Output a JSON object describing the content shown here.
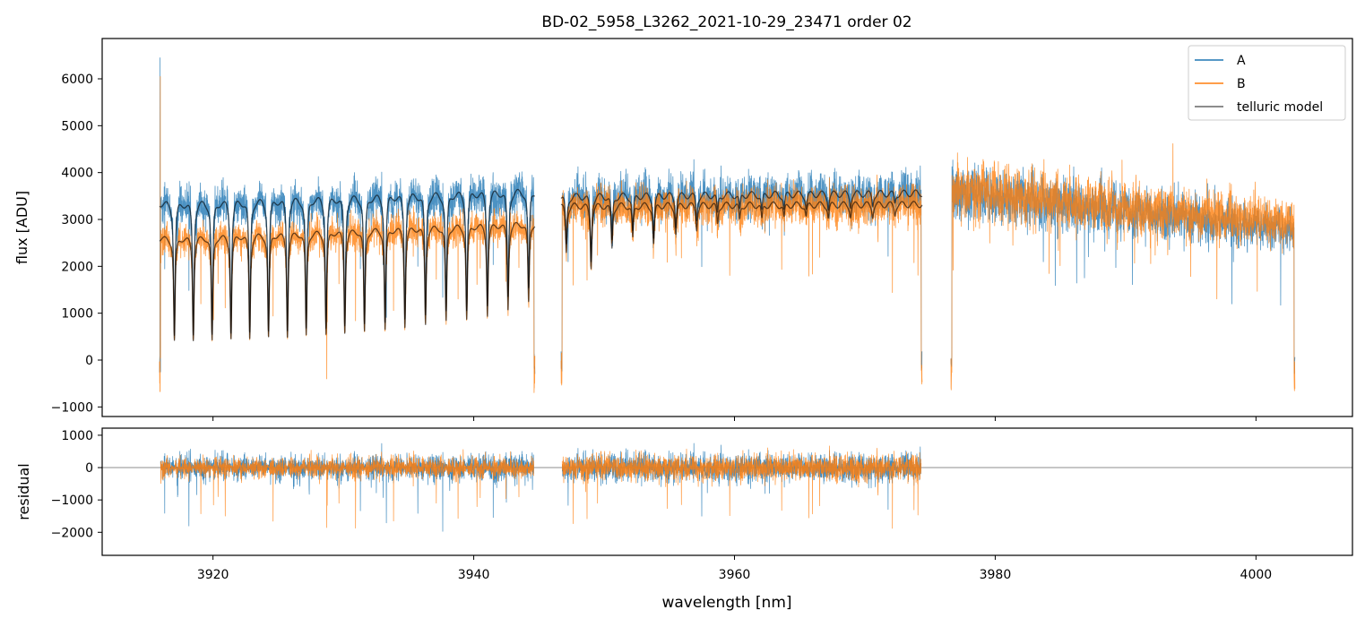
{
  "chart_data": {
    "type": "line",
    "title": "BD-02_5958_L3262_2021-10-29_23471  order 02",
    "xlabel": "wavelength [nm]",
    "top_panel": {
      "ylabel": "flux [ADU]",
      "xlim": [
        3911.5,
        4007.4
      ],
      "ylim": [
        -1204,
        6860
      ],
      "yticks": [
        -1000,
        0,
        1000,
        2000,
        3000,
        4000,
        5000,
        6000
      ],
      "legend": {
        "placement": "top-right",
        "entries": [
          "A",
          "B",
          "telluric model"
        ]
      }
    },
    "bottom_panel": {
      "ylabel": "residual",
      "ylim": [
        -2712,
        1219
      ],
      "yticks": [
        -2000,
        -1000,
        0,
        1000
      ],
      "zero_line": true
    },
    "xticks": [
      3920,
      3940,
      3960,
      3980,
      4000
    ],
    "colors": {
      "A": "#1f77b4",
      "B": "#ff7f0e",
      "model": "#000000"
    },
    "segments": [
      {
        "range": [
          3915.9,
          3944.7
        ],
        "has_model": true,
        "A_continuum": [
          3350,
          3620
        ],
        "B_continuum": [
          2600,
          2930
        ],
        "noise": 0.06,
        "lines": [
          {
            "w": 3917.04,
            "depth": 0.84
          },
          {
            "w": 3918.49,
            "depth": 0.84
          },
          {
            "w": 3919.93,
            "depth": 0.84
          },
          {
            "w": 3921.38,
            "depth": 0.83
          },
          {
            "w": 3922.82,
            "depth": 0.83
          },
          {
            "w": 3924.26,
            "depth": 0.82
          },
          {
            "w": 3925.71,
            "depth": 0.82
          },
          {
            "w": 3927.15,
            "depth": 0.81
          },
          {
            "w": 3928.67,
            "depth": 0.8
          },
          {
            "w": 3930.11,
            "depth": 0.79
          },
          {
            "w": 3931.62,
            "depth": 0.78
          },
          {
            "w": 3933.2,
            "depth": 0.77
          },
          {
            "w": 3934.72,
            "depth": 0.75
          },
          {
            "w": 3936.3,
            "depth": 0.73
          },
          {
            "w": 3937.88,
            "depth": 0.71
          },
          {
            "w": 3939.46,
            "depth": 0.7
          },
          {
            "w": 3941.05,
            "depth": 0.67
          },
          {
            "w": 3942.63,
            "depth": 0.63
          },
          {
            "w": 3944.21,
            "depth": 0.58
          }
        ]
      },
      {
        "range": [
          3946.7,
          3974.4
        ],
        "has_model": true,
        "A_continuum": [
          3500,
          3560
        ],
        "B_continuum": [
          3300,
          3320
        ],
        "noise": 0.06,
        "lines": [
          {
            "w": 3947.1,
            "depth": 0.3
          },
          {
            "w": 3949.0,
            "depth": 0.4
          },
          {
            "w": 3950.6,
            "depth": 0.28
          },
          {
            "w": 3952.2,
            "depth": 0.22
          },
          {
            "w": 3953.8,
            "depth": 0.25
          },
          {
            "w": 3955.5,
            "depth": 0.18
          },
          {
            "w": 3957.1,
            "depth": 0.15
          },
          {
            "w": 3958.7,
            "depth": 0.12
          },
          {
            "w": 3960.4,
            "depth": 0.1
          },
          {
            "w": 3962.1,
            "depth": 0.1
          },
          {
            "w": 3963.8,
            "depth": 0.09
          },
          {
            "w": 3965.5,
            "depth": 0.08
          },
          {
            "w": 3967.2,
            "depth": 0.08
          },
          {
            "w": 3968.9,
            "depth": 0.07
          },
          {
            "w": 3970.6,
            "depth": 0.07
          },
          {
            "w": 3972.3,
            "depth": 0.06
          }
        ]
      },
      {
        "range": [
          3976.6,
          4003.0
        ],
        "has_model": false,
        "A_continuum": [
          3600,
          2750
        ],
        "B_continuum": [
          3650,
          2900
        ],
        "noise": 0.08,
        "lines": []
      }
    ]
  }
}
